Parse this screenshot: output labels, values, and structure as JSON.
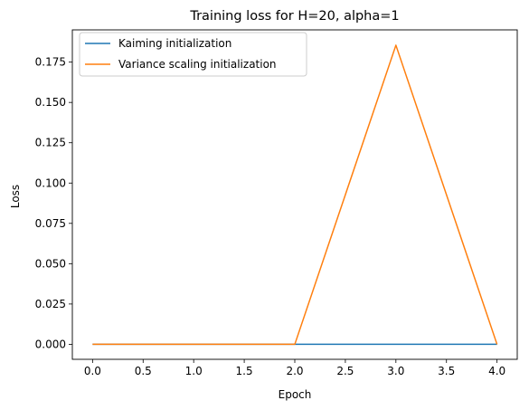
{
  "chart_data": {
    "type": "line",
    "title": "Training loss for H=20, alpha=1",
    "xlabel": "Epoch",
    "ylabel": "Loss",
    "x": [
      0,
      1,
      2,
      3,
      4
    ],
    "series": [
      {
        "name": "Kaiming initialization",
        "color": "#1f77b4",
        "values": [
          0.0,
          0.0,
          0.0,
          0.0,
          0.0
        ]
      },
      {
        "name": "Variance scaling initialization",
        "color": "#ff7f0e",
        "values": [
          0.0,
          0.0,
          0.0,
          0.1855,
          0.0
        ]
      }
    ],
    "xlim": [
      -0.2,
      4.2
    ],
    "ylim": [
      -0.0093,
      0.195
    ],
    "xticks": [
      0.0,
      0.5,
      1.0,
      1.5,
      2.0,
      2.5,
      3.0,
      3.5,
      4.0
    ],
    "xtick_labels": [
      "0.0",
      "0.5",
      "1.0",
      "1.5",
      "2.0",
      "2.5",
      "3.0",
      "3.5",
      "4.0"
    ],
    "yticks": [
      0.0,
      0.025,
      0.05,
      0.075,
      0.1,
      0.125,
      0.15,
      0.175
    ],
    "ytick_labels": [
      "0.000",
      "0.025",
      "0.050",
      "0.075",
      "0.100",
      "0.125",
      "0.150",
      "0.175"
    ],
    "grid": false,
    "legend": "top-left"
  }
}
